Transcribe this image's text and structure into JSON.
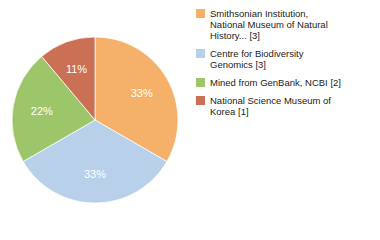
{
  "chart_data": {
    "type": "pie",
    "categories": [
      "Smithsonian Institution,\nNational Museum of Natural\nHistory... [3]",
      "Centre for Biodiversity\nGenomics [3]",
      "Mined from GenBank, NCBI [2]",
      "National Science Museum of\nKorea [1]"
    ],
    "values": [
      33,
      33,
      22,
      11
    ],
    "value_labels": [
      "33%",
      "33%",
      "22%",
      "11%"
    ],
    "colors": [
      "#f5b06a",
      "#b8d0ea",
      "#9dc56a",
      "#c97055"
    ],
    "data_labels": true,
    "legend": "right"
  }
}
